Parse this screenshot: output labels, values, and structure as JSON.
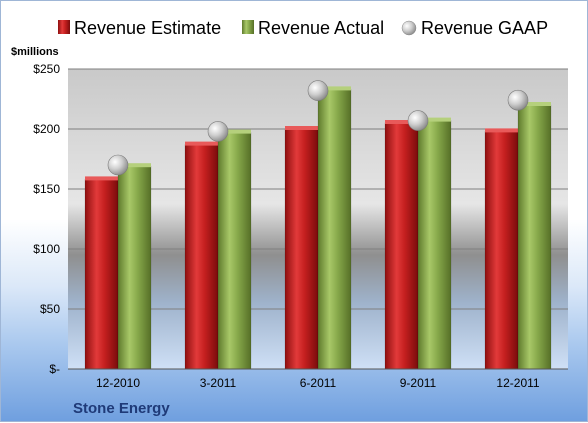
{
  "chart_data": {
    "type": "bar",
    "title": "",
    "unit_label": "$millions",
    "company": "Stone Energy",
    "categories": [
      "12-2010",
      "3-2011",
      "6-2011",
      "9-2011",
      "12-2011"
    ],
    "series": [
      {
        "name": "Revenue Estimate",
        "kind": "bar",
        "color": "#cc1f1f",
        "values": [
          158,
          187,
          200,
          205,
          198
        ]
      },
      {
        "name": "Revenue Actual",
        "kind": "bar",
        "color": "#8db04e",
        "values": [
          169,
          197,
          233,
          207,
          220
        ]
      },
      {
        "name": "Revenue GAAP",
        "kind": "marker",
        "color": "#b9b9b9",
        "values": [
          170,
          198,
          232,
          207,
          224
        ]
      }
    ],
    "yticks": [
      "$-",
      "$50",
      "$100",
      "$150",
      "$200",
      "$250"
    ],
    "ylim": [
      0,
      250
    ],
    "grid": true,
    "legend_position": "top"
  }
}
